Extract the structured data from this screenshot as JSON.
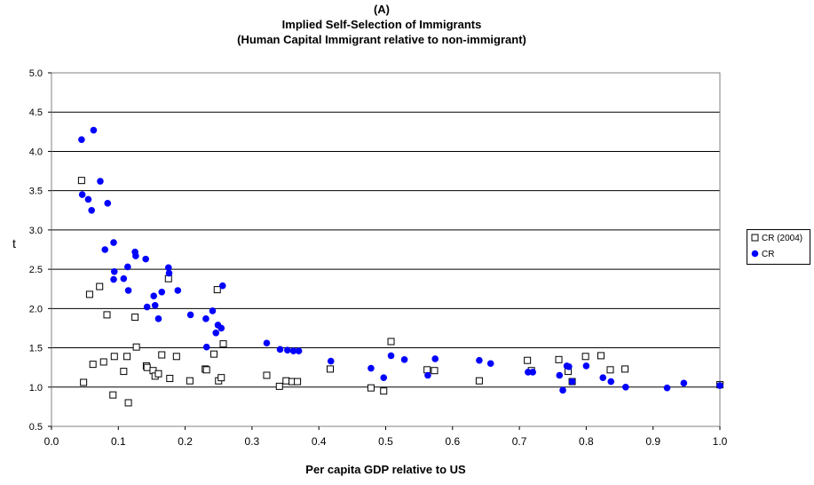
{
  "chart_data": {
    "type": "scatter",
    "panel": "(A)",
    "title": "Implied Self-Selection of Immigrants",
    "subtitle": "(Human Capital Immigrant relative to non-immigrant)",
    "xlabel": "Per capita GDP relative to US",
    "ylabel": "t",
    "xlim": [
      0.0,
      1.0
    ],
    "ylim": [
      0.5,
      5.0
    ],
    "xticks": [
      "0.0",
      "0.1",
      "0.2",
      "0.3",
      "0.4",
      "0.5",
      "0.6",
      "0.7",
      "0.8",
      "0.9",
      "1.0"
    ],
    "yticks": [
      "0.5",
      "1.0",
      "1.5",
      "2.0",
      "2.5",
      "3.0",
      "3.5",
      "4.0",
      "4.5",
      "5.0"
    ],
    "grid": "horizontal",
    "legend_position": "right",
    "series": [
      {
        "name": "CR (2004)",
        "marker": "open-square",
        "color": "#000000",
        "points": [
          [
            0.045,
            3.63
          ],
          [
            0.048,
            1.06
          ],
          [
            0.057,
            2.18
          ],
          [
            0.062,
            1.29
          ],
          [
            0.072,
            2.28
          ],
          [
            0.078,
            1.32
          ],
          [
            0.083,
            1.92
          ],
          [
            0.092,
            0.9
          ],
          [
            0.094,
            1.39
          ],
          [
            0.108,
            1.2
          ],
          [
            0.113,
            1.39
          ],
          [
            0.115,
            0.8
          ],
          [
            0.125,
            1.89
          ],
          [
            0.127,
            1.51
          ],
          [
            0.142,
            1.27
          ],
          [
            0.143,
            1.25
          ],
          [
            0.152,
            1.21
          ],
          [
            0.155,
            1.14
          ],
          [
            0.16,
            1.17
          ],
          [
            0.165,
            1.41
          ],
          [
            0.175,
            2.38
          ],
          [
            0.177,
            1.11
          ],
          [
            0.187,
            1.39
          ],
          [
            0.207,
            1.08
          ],
          [
            0.23,
            1.23
          ],
          [
            0.232,
            1.22
          ],
          [
            0.243,
            1.42
          ],
          [
            0.248,
            2.24
          ],
          [
            0.25,
            1.08
          ],
          [
            0.254,
            1.12
          ],
          [
            0.257,
            1.55
          ],
          [
            0.322,
            1.15
          ],
          [
            0.341,
            1.01
          ],
          [
            0.351,
            1.08
          ],
          [
            0.36,
            1.07
          ],
          [
            0.368,
            1.07
          ],
          [
            0.417,
            1.23
          ],
          [
            0.478,
            0.99
          ],
          [
            0.497,
            0.95
          ],
          [
            0.508,
            1.58
          ],
          [
            0.562,
            1.22
          ],
          [
            0.573,
            1.21
          ],
          [
            0.64,
            1.08
          ],
          [
            0.712,
            1.34
          ],
          [
            0.718,
            1.21
          ],
          [
            0.759,
            1.35
          ],
          [
            0.773,
            1.2
          ],
          [
            0.779,
            1.07
          ],
          [
            0.799,
            1.39
          ],
          [
            0.822,
            1.4
          ],
          [
            0.836,
            1.22
          ],
          [
            0.858,
            1.23
          ],
          [
            1.0,
            1.03
          ]
        ]
      },
      {
        "name": "CR",
        "marker": "filled-circle",
        "color": "#0000ff",
        "points": [
          [
            0.045,
            4.15
          ],
          [
            0.063,
            4.27
          ],
          [
            0.046,
            3.45
          ],
          [
            0.055,
            3.39
          ],
          [
            0.06,
            3.25
          ],
          [
            0.073,
            3.62
          ],
          [
            0.084,
            3.34
          ],
          [
            0.08,
            2.75
          ],
          [
            0.093,
            2.84
          ],
          [
            0.094,
            2.47
          ],
          [
            0.093,
            2.37
          ],
          [
            0.108,
            2.38
          ],
          [
            0.114,
            2.53
          ],
          [
            0.115,
            2.23
          ],
          [
            0.125,
            2.72
          ],
          [
            0.126,
            2.67
          ],
          [
            0.141,
            2.63
          ],
          [
            0.143,
            2.02
          ],
          [
            0.153,
            2.16
          ],
          [
            0.155,
            2.04
          ],
          [
            0.16,
            1.87
          ],
          [
            0.165,
            2.21
          ],
          [
            0.175,
            2.52
          ],
          [
            0.176,
            2.45
          ],
          [
            0.189,
            2.23
          ],
          [
            0.208,
            1.92
          ],
          [
            0.231,
            1.87
          ],
          [
            0.232,
            1.51
          ],
          [
            0.241,
            1.97
          ],
          [
            0.246,
            1.69
          ],
          [
            0.249,
            1.79
          ],
          [
            0.254,
            1.75
          ],
          [
            0.256,
            2.29
          ],
          [
            0.322,
            1.56
          ],
          [
            0.342,
            1.48
          ],
          [
            0.353,
            1.47
          ],
          [
            0.362,
            1.46
          ],
          [
            0.37,
            1.46
          ],
          [
            0.418,
            1.33
          ],
          [
            0.478,
            1.24
          ],
          [
            0.497,
            1.12
          ],
          [
            0.508,
            1.4
          ],
          [
            0.528,
            1.35
          ],
          [
            0.563,
            1.15
          ],
          [
            0.574,
            1.36
          ],
          [
            0.64,
            1.34
          ],
          [
            0.657,
            1.3
          ],
          [
            0.713,
            1.19
          ],
          [
            0.72,
            1.19
          ],
          [
            0.76,
            1.15
          ],
          [
            0.765,
            0.96
          ],
          [
            0.771,
            1.27
          ],
          [
            0.774,
            1.26
          ],
          [
            0.779,
            1.07
          ],
          [
            0.8,
            1.27
          ],
          [
            0.825,
            1.12
          ],
          [
            0.837,
            1.07
          ],
          [
            0.859,
            1.0
          ],
          [
            0.921,
            0.99
          ],
          [
            0.946,
            1.05
          ],
          [
            1.0,
            1.02
          ]
        ]
      }
    ]
  }
}
